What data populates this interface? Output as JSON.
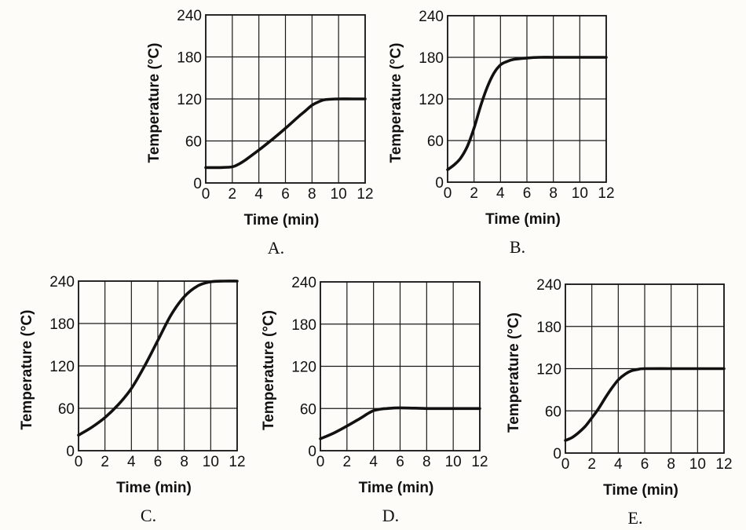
{
  "chart_data": [
    {
      "id": "A",
      "type": "line",
      "panel_label": "A.",
      "xlabel": "Time (min)",
      "ylabel": "Temperature (°C)",
      "xlim": [
        0,
        12
      ],
      "ylim": [
        0,
        240
      ],
      "xticks": [
        0,
        2,
        4,
        6,
        8,
        10,
        12
      ],
      "yticks": [
        0,
        60,
        120,
        180,
        240
      ],
      "grid": true,
      "series": [
        {
          "name": "A",
          "x": [
            0,
            1,
            2,
            2.5,
            3,
            4,
            5,
            6,
            7,
            7.5,
            8,
            8.5,
            9,
            10,
            11,
            12
          ],
          "y": [
            22,
            22,
            23,
            27,
            33,
            47,
            62,
            78,
            95,
            103,
            111,
            116,
            119,
            120,
            120,
            120
          ]
        }
      ]
    },
    {
      "id": "B",
      "type": "line",
      "panel_label": "B.",
      "xlabel": "Time (min)",
      "ylabel": "Temperature (°C)",
      "xlim": [
        0,
        12
      ],
      "ylim": [
        0,
        240
      ],
      "xticks": [
        0,
        2,
        4,
        6,
        8,
        10,
        12
      ],
      "yticks": [
        0,
        60,
        120,
        180,
        240
      ],
      "grid": true,
      "series": [
        {
          "name": "B",
          "x": [
            0,
            0.5,
            1,
            1.5,
            2,
            2.5,
            3,
            3.5,
            4,
            4.5,
            5,
            6,
            7,
            8,
            10,
            12
          ],
          "y": [
            18,
            25,
            35,
            52,
            78,
            110,
            137,
            157,
            169,
            174,
            177,
            179,
            180,
            180,
            180,
            180
          ]
        }
      ]
    },
    {
      "id": "C",
      "type": "line",
      "panel_label": "C.",
      "xlabel": "Time (min)",
      "ylabel": "Temperature (°C)",
      "xlim": [
        0,
        12
      ],
      "ylim": [
        0,
        240
      ],
      "xticks": [
        0,
        2,
        4,
        6,
        8,
        10,
        12
      ],
      "yticks": [
        0,
        60,
        120,
        180,
        240
      ],
      "grid": true,
      "series": [
        {
          "name": "C",
          "x": [
            0,
            1,
            2,
            3,
            4,
            5,
            6,
            7,
            8,
            9,
            10,
            11,
            12
          ],
          "y": [
            22,
            33,
            47,
            65,
            88,
            120,
            156,
            192,
            218,
            233,
            239,
            240,
            240
          ]
        }
      ]
    },
    {
      "id": "D",
      "type": "line",
      "panel_label": "D.",
      "xlabel": "Time (min)",
      "ylabel": "Temperature (°C)",
      "xlim": [
        0,
        12
      ],
      "ylim": [
        0,
        240
      ],
      "xticks": [
        0,
        2,
        4,
        6,
        8,
        10,
        12
      ],
      "yticks": [
        0,
        60,
        120,
        180,
        240
      ],
      "grid": true,
      "series": [
        {
          "name": "D",
          "x": [
            0,
            1,
            2,
            3,
            3.5,
            4,
            4.5,
            5,
            6,
            8,
            10,
            12
          ],
          "y": [
            17,
            25,
            35,
            46,
            52,
            57,
            59,
            60,
            61,
            60,
            60,
            60
          ]
        }
      ]
    },
    {
      "id": "E",
      "type": "line",
      "panel_label": "E.",
      "xlabel": "Time (min)",
      "ylabel": "Temperature (°C)",
      "xlim": [
        0,
        12
      ],
      "ylim": [
        0,
        240
      ],
      "xticks": [
        0,
        2,
        4,
        6,
        8,
        10,
        12
      ],
      "yticks": [
        0,
        60,
        120,
        180,
        240
      ],
      "grid": true,
      "series": [
        {
          "name": "E",
          "x": [
            0,
            0.5,
            1,
            1.5,
            2,
            2.5,
            3,
            3.5,
            4,
            4.5,
            5,
            5.5,
            6,
            8,
            10,
            12
          ],
          "y": [
            18,
            22,
            29,
            38,
            50,
            63,
            78,
            92,
            104,
            112,
            117,
            119,
            120,
            120,
            120,
            120
          ]
        }
      ]
    }
  ]
}
